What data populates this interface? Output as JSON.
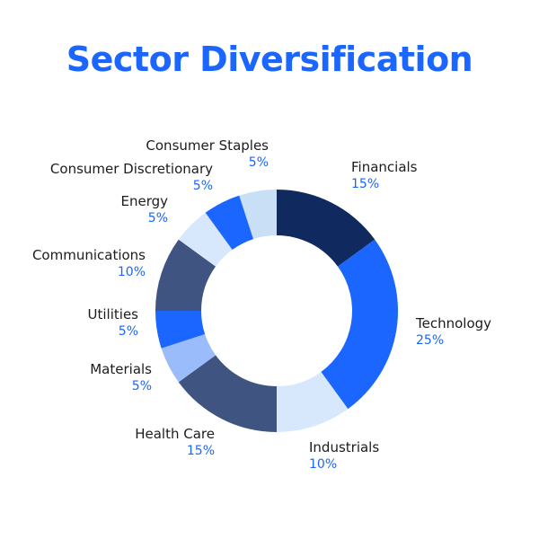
{
  "title": "Sector Diversification",
  "colors": {
    "title": "#1a66ff",
    "label": "#1c1c1c",
    "percent": "#1a66ff"
  },
  "chart_data": {
    "type": "pie",
    "subtype": "donut",
    "title": "Sector Diversification",
    "categories": [
      "Financials",
      "Technology",
      "Industrials",
      "Health Care",
      "Materials",
      "Utilities",
      "Communications",
      "Energy",
      "Consumer Discretionary",
      "Consumer Staples"
    ],
    "values": [
      15,
      25,
      10,
      15,
      5,
      5,
      10,
      5,
      5,
      5
    ],
    "unit": "%",
    "colors": [
      "#10295e",
      "#1a66ff",
      "#d8e8fc",
      "#3f5480",
      "#9bbcfb",
      "#1a66ff",
      "#3f5480",
      "#d8e8fc",
      "#1a66ff",
      "#c9dff5"
    ],
    "start_angle_deg": 0,
    "direction": "clockwise",
    "legend": "none (direct labels)"
  },
  "labels": [
    {
      "name": "Financials",
      "pct": "15%"
    },
    {
      "name": "Technology",
      "pct": "25%"
    },
    {
      "name": "Industrials",
      "pct": "10%"
    },
    {
      "name": "Health Care",
      "pct": "15%"
    },
    {
      "name": "Materials",
      "pct": "5%"
    },
    {
      "name": "Utilities",
      "pct": "5%"
    },
    {
      "name": "Communications",
      "pct": "10%"
    },
    {
      "name": "Energy",
      "pct": "5%"
    },
    {
      "name": "Consumer Discretionary",
      "pct": "5%"
    },
    {
      "name": "Consumer Staples",
      "pct": "5%"
    }
  ]
}
